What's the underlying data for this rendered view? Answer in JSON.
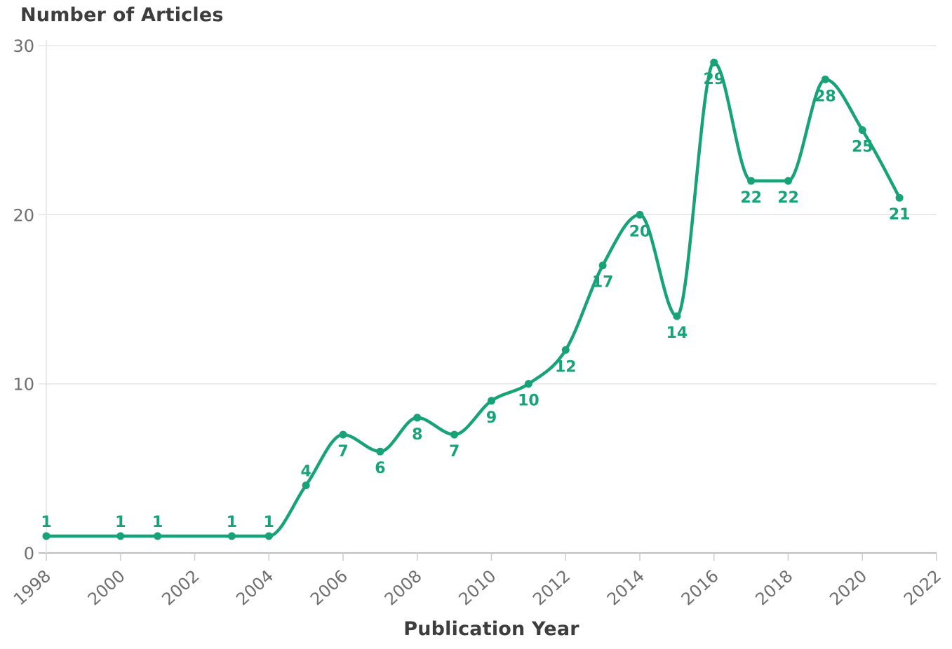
{
  "chart_data": {
    "type": "line",
    "title": "Number of Articles",
    "xlabel": "Publication Year",
    "ylabel": "",
    "x": [
      1998,
      2000,
      2001,
      2003,
      2004,
      2005,
      2006,
      2007,
      2008,
      2009,
      2010,
      2011,
      2012,
      2013,
      2014,
      2015,
      2016,
      2017,
      2018,
      2019,
      2020,
      2021
    ],
    "values": [
      1,
      1,
      1,
      1,
      1,
      4,
      7,
      6,
      8,
      7,
      9,
      10,
      12,
      17,
      20,
      14,
      29,
      22,
      22,
      28,
      25,
      21
    ],
    "xlim": [
      1998,
      2022
    ],
    "ylim": [
      0,
      30
    ],
    "xticks": [
      1998,
      2000,
      2002,
      2004,
      2006,
      2008,
      2010,
      2012,
      2014,
      2016,
      2018,
      2020,
      2022
    ],
    "yticks": [
      0,
      10,
      20,
      30
    ],
    "grid": "horizontal-only",
    "legend": "none",
    "smoothing": "monotone",
    "colors": {
      "line": "#17a377",
      "point_label": "#17a377",
      "title_text": "#3d3d3d",
      "axis_label_text": "#3d3d3d",
      "tick_text": "#6f6f6f",
      "gridline": "#e5e5e5",
      "axis_line": "#a9a9a9",
      "tick_mark": "#cfcfcf",
      "background": "#ffffff"
    }
  }
}
